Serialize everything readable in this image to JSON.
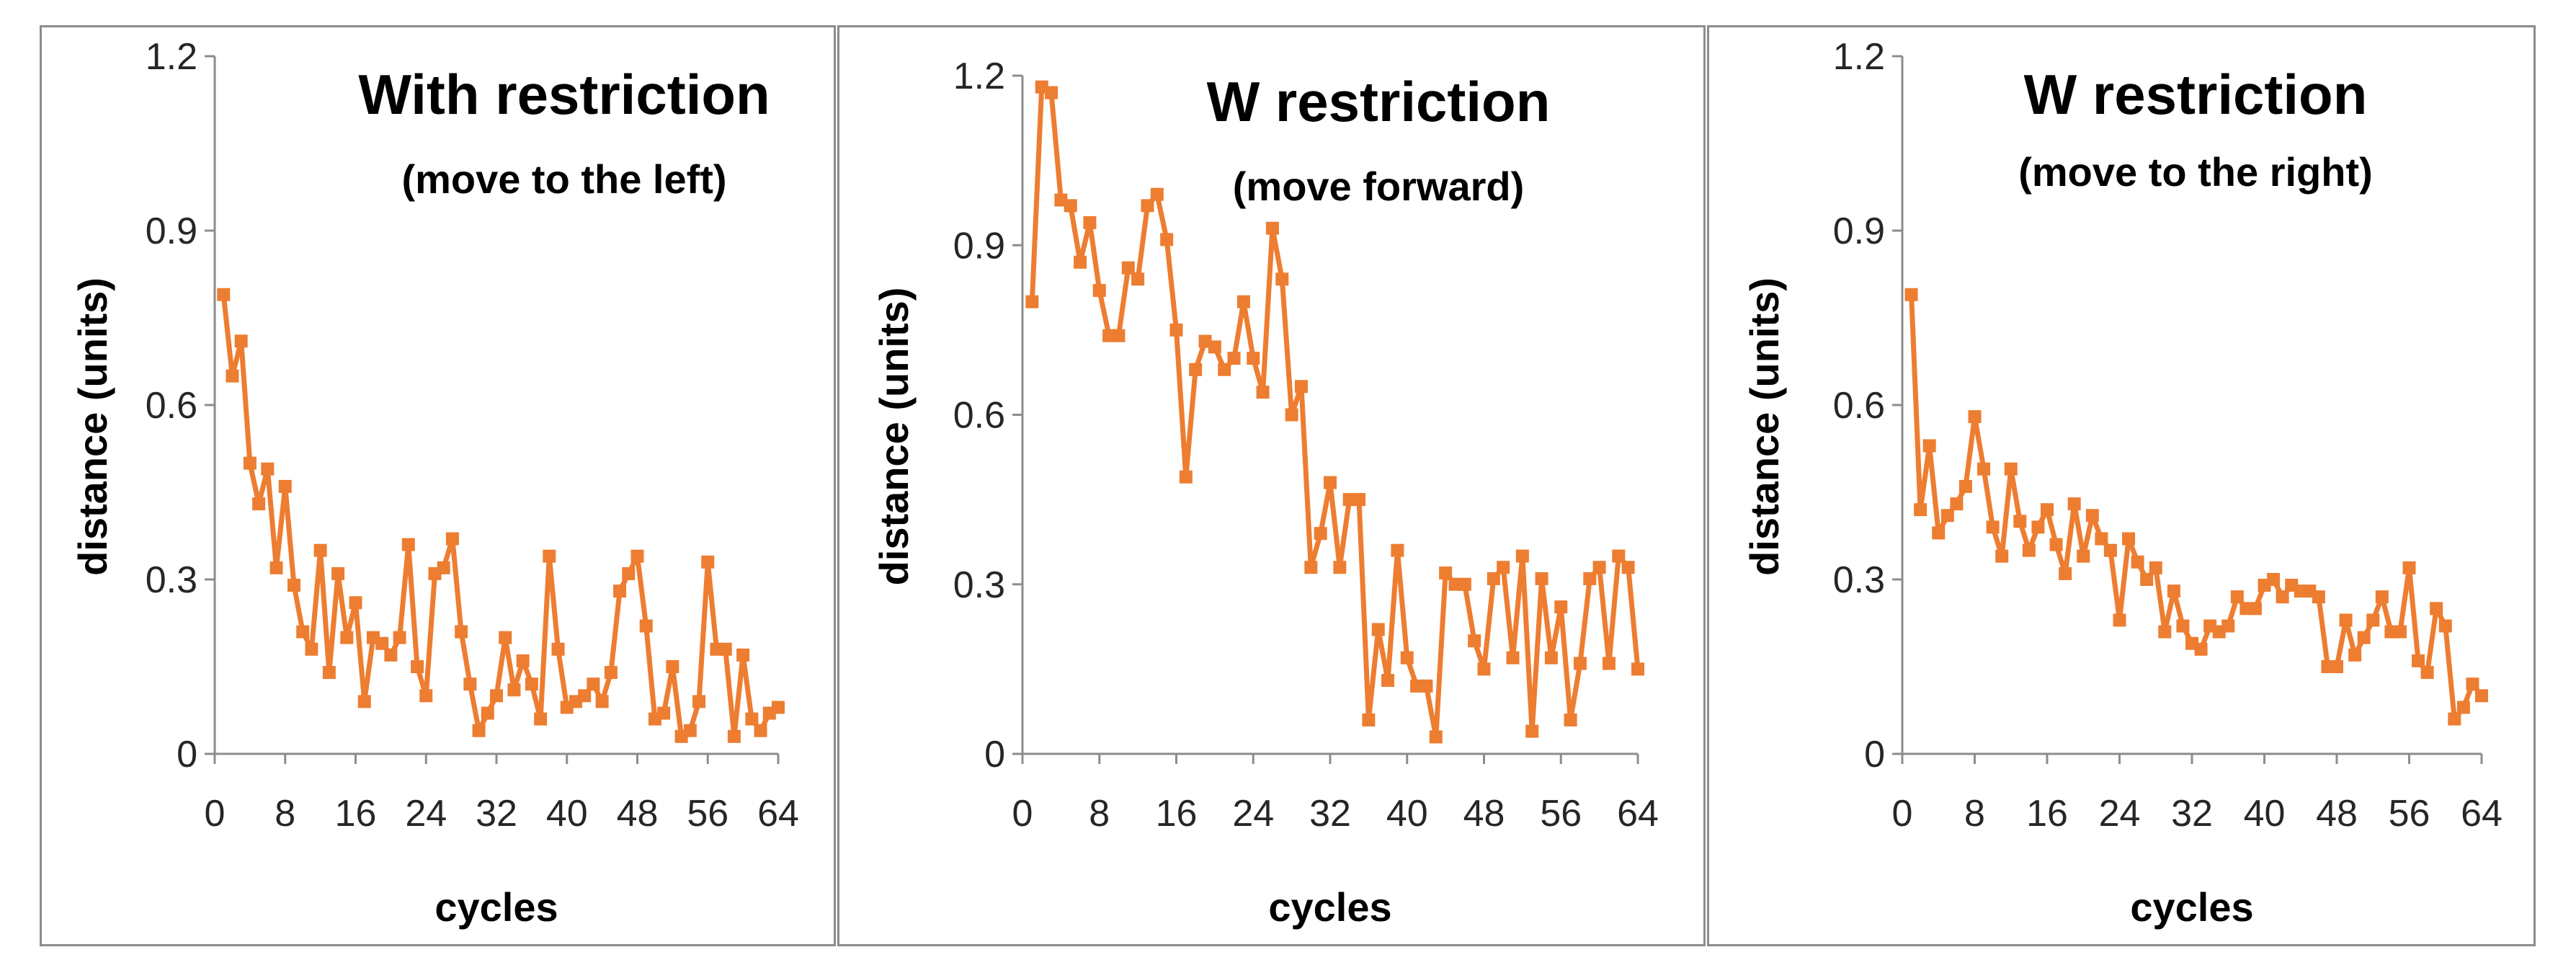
{
  "chart_data": [
    {
      "type": "line",
      "title": "With restriction",
      "subtitle": "(move to the left)",
      "xlabel": "cycles",
      "ylabel": "distance (units)",
      "xticks": [
        "0",
        "8",
        "16",
        "24",
        "32",
        "40",
        "48",
        "56",
        "64"
      ],
      "yticks": [
        "0",
        "0.3",
        "0.6",
        "0.9",
        "1.2"
      ],
      "xlim": [
        0,
        64
      ],
      "ylim": [
        0,
        1.2
      ],
      "grid": false,
      "series": [
        {
          "name": "distance",
          "color": "#ed7d31",
          "marker": "square",
          "x": [
            1,
            2,
            3,
            4,
            5,
            6,
            7,
            8,
            9,
            10,
            11,
            12,
            13,
            14,
            15,
            16,
            17,
            18,
            19,
            20,
            21,
            22,
            23,
            24,
            25,
            26,
            27,
            28,
            29,
            30,
            31,
            32,
            33,
            34,
            35,
            36,
            37,
            38,
            39,
            40,
            41,
            42,
            43,
            44,
            45,
            46,
            47,
            48,
            49,
            50,
            51,
            52,
            53,
            54,
            55,
            56,
            57,
            58,
            59,
            60,
            61,
            62,
            63,
            64
          ],
          "values": [
            0.79,
            0.65,
            0.71,
            0.5,
            0.43,
            0.49,
            0.32,
            0.46,
            0.29,
            0.21,
            0.18,
            0.35,
            0.14,
            0.31,
            0.2,
            0.26,
            0.09,
            0.2,
            0.19,
            0.17,
            0.2,
            0.36,
            0.15,
            0.1,
            0.31,
            0.32,
            0.37,
            0.21,
            0.12,
            0.04,
            0.07,
            0.1,
            0.2,
            0.11,
            0.16,
            0.12,
            0.06,
            0.34,
            0.18,
            0.08,
            0.09,
            0.1,
            0.12,
            0.09,
            0.14,
            0.28,
            0.31,
            0.34,
            0.22,
            0.06,
            0.07,
            0.15,
            0.03,
            0.04,
            0.09,
            0.33,
            0.18,
            0.18,
            0.03,
            0.17,
            0.06,
            0.04,
            0.07,
            0.08
          ]
        }
      ]
    },
    {
      "type": "line",
      "title": "W restriction",
      "subtitle": "(move forward)",
      "xlabel": "cycles",
      "ylabel": "distance (units)",
      "xticks": [
        "0",
        "8",
        "16",
        "24",
        "32",
        "40",
        "48",
        "56",
        "64"
      ],
      "yticks": [
        "0",
        "0.3",
        "0.6",
        "0.9",
        "1.2"
      ],
      "xlim": [
        0,
        64
      ],
      "ylim": [
        0,
        1.2
      ],
      "grid": false,
      "series": [
        {
          "name": "distance",
          "color": "#ed7d31",
          "marker": "square",
          "x": [
            1,
            2,
            3,
            4,
            5,
            6,
            7,
            8,
            9,
            10,
            11,
            12,
            13,
            14,
            15,
            16,
            17,
            18,
            19,
            20,
            21,
            22,
            23,
            24,
            25,
            26,
            27,
            28,
            29,
            30,
            31,
            32,
            33,
            34,
            35,
            36,
            37,
            38,
            39,
            40,
            41,
            42,
            43,
            44,
            45,
            46,
            47,
            48,
            49,
            50,
            51,
            52,
            53,
            54,
            55,
            56,
            57,
            58,
            59,
            60,
            61,
            62,
            63,
            64
          ],
          "values": [
            0.8,
            1.18,
            1.17,
            0.98,
            0.97,
            0.87,
            0.94,
            0.82,
            0.74,
            0.74,
            0.86,
            0.84,
            0.97,
            0.99,
            0.91,
            0.75,
            0.49,
            0.68,
            0.73,
            0.72,
            0.68,
            0.7,
            0.8,
            0.7,
            0.64,
            0.93,
            0.84,
            0.6,
            0.65,
            0.33,
            0.39,
            0.48,
            0.33,
            0.45,
            0.45,
            0.06,
            0.22,
            0.13,
            0.36,
            0.17,
            0.12,
            0.12,
            0.03,
            0.32,
            0.3,
            0.3,
            0.2,
            0.15,
            0.31,
            0.33,
            0.17,
            0.35,
            0.04,
            0.31,
            0.17,
            0.26,
            0.06,
            0.16,
            0.31,
            0.33,
            0.16,
            0.35,
            0.33,
            0.15
          ]
        }
      ]
    },
    {
      "type": "line",
      "title": "W restriction",
      "subtitle": "(move to the right)",
      "xlabel": "cycles",
      "ylabel": "distance (units)",
      "xticks": [
        "0",
        "8",
        "16",
        "24",
        "32",
        "40",
        "48",
        "56",
        "64"
      ],
      "yticks": [
        "0",
        "0.3",
        "0.6",
        "0.9",
        "1.2"
      ],
      "xlim": [
        0,
        64
      ],
      "ylim": [
        0,
        1.2
      ],
      "grid": false,
      "series": [
        {
          "name": "distance",
          "color": "#ed7d31",
          "marker": "square",
          "x": [
            1,
            2,
            3,
            4,
            5,
            6,
            7,
            8,
            9,
            10,
            11,
            12,
            13,
            14,
            15,
            16,
            17,
            18,
            19,
            20,
            21,
            22,
            23,
            24,
            25,
            26,
            27,
            28,
            29,
            30,
            31,
            32,
            33,
            34,
            35,
            36,
            37,
            38,
            39,
            40,
            41,
            42,
            43,
            44,
            45,
            46,
            47,
            48,
            49,
            50,
            51,
            52,
            53,
            54,
            55,
            56,
            57,
            58,
            59,
            60,
            61,
            62,
            63,
            64
          ],
          "values": [
            0.79,
            0.42,
            0.53,
            0.38,
            0.41,
            0.43,
            0.46,
            0.58,
            0.49,
            0.39,
            0.34,
            0.49,
            0.4,
            0.35,
            0.39,
            0.42,
            0.36,
            0.31,
            0.43,
            0.34,
            0.41,
            0.37,
            0.35,
            0.23,
            0.37,
            0.33,
            0.3,
            0.32,
            0.21,
            0.28,
            0.22,
            0.19,
            0.18,
            0.22,
            0.21,
            0.22,
            0.27,
            0.25,
            0.25,
            0.29,
            0.3,
            0.27,
            0.29,
            0.28,
            0.28,
            0.27,
            0.15,
            0.15,
            0.23,
            0.17,
            0.2,
            0.23,
            0.27,
            0.21,
            0.21,
            0.32,
            0.16,
            0.14,
            0.25,
            0.22,
            0.06,
            0.08,
            0.12,
            0.1
          ]
        }
      ]
    }
  ]
}
